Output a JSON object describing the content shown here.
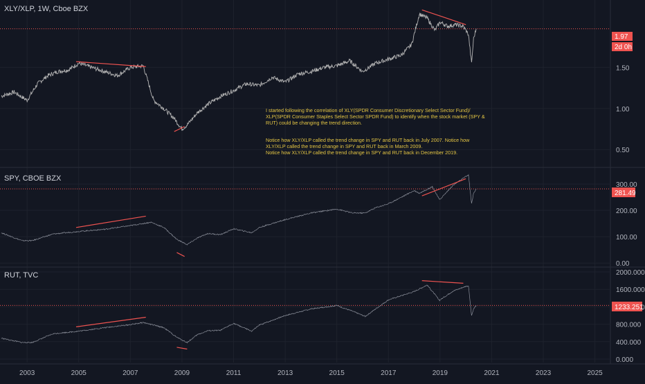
{
  "panes": [
    {
      "id": "xly_xlp",
      "title": "XLY/XLP, 1W, Cboe BZX",
      "yticks": [
        "1.50",
        "1.00",
        "0.50"
      ],
      "tick_values": [
        1.5,
        1.0,
        0.5
      ],
      "ylim": [
        0.3,
        2.32
      ],
      "last_value_label": "1.97",
      "last_value": 1.97,
      "countdown_label": "2d 0h",
      "accent": "#ef5350"
    },
    {
      "id": "spy",
      "title": "SPY, CBOE BZX",
      "yticks": [
        "300.00",
        "200.00",
        "100.00",
        "0.00"
      ],
      "tick_values": [
        300,
        200,
        100,
        0
      ],
      "ylim": [
        -10,
        355
      ],
      "last_value_label": "281.49",
      "last_value": 281.49,
      "accent": "#ef5350"
    },
    {
      "id": "rut",
      "title": "RUT, TVC",
      "yticks": [
        "2000.000",
        "1600.000",
        "1200.000",
        "800.000",
        "400.000",
        "0.000"
      ],
      "tick_values": [
        2000,
        1600,
        1200,
        800,
        400,
        0
      ],
      "ylim": [
        -80,
        2080
      ],
      "last_value_label": "1233.251",
      "last_value": 1233.251,
      "accent": "#ef5350"
    }
  ],
  "xaxis": {
    "ticks": [
      "2003",
      "2005",
      "2007",
      "2009",
      "2011",
      "2013",
      "2015",
      "2017",
      "2019",
      "2021",
      "2023",
      "2025"
    ],
    "tick_years": [
      2003,
      2005,
      2007,
      2009,
      2011,
      2013,
      2015,
      2017,
      2019,
      2021,
      2023,
      2025
    ],
    "range": [
      2001.95,
      2025.6
    ]
  },
  "annotation": {
    "p1": "I started following the correlation of XLY(SPDR Consumer Discretionary Select Sector Fund)/",
    "p2": "XLP(SPDR Consumer Staples Select Sector SPDR Fund) to identify when the stock market (SPY &",
    "p3": "RUT) could be changing the trend direction.",
    "p4": "Notice how XLY/XLP called the trend change in SPY and RUT back in July 2007. Notice how",
    "p5": "XLY/XLP called the trend change in SPY and RUT back in March 2009.",
    "p6": "Notice how XLY/XLP called the trend change in SPY and RUT back in December 2019.",
    "color": "#e6c744"
  },
  "chart_data": [
    {
      "type": "line",
      "title": "XLY/XLP, 1W, Cboe BZX",
      "series": [
        {
          "name": "XLY/XLP",
          "x": [
            2002.0,
            2002.5,
            2003.0,
            2003.4,
            2003.8,
            2004.2,
            2004.6,
            2005.0,
            2005.5,
            2006.0,
            2006.5,
            2007.0,
            2007.5,
            2007.9,
            2008.3,
            2008.7,
            2009.0,
            2009.2,
            2009.6,
            2010.0,
            2010.5,
            2011.0,
            2011.5,
            2012.0,
            2012.5,
            2013.0,
            2013.5,
            2014.0,
            2014.5,
            2015.0,
            2015.5,
            2016.0,
            2016.5,
            2017.0,
            2017.5,
            2017.9,
            2018.2,
            2018.5,
            2018.8,
            2019.0,
            2019.3,
            2019.6,
            2019.9,
            2020.1,
            2020.22,
            2020.3,
            2020.4
          ],
          "values": [
            1.15,
            1.2,
            1.1,
            1.3,
            1.4,
            1.45,
            1.47,
            1.55,
            1.5,
            1.45,
            1.4,
            1.5,
            1.52,
            1.1,
            1.0,
            0.88,
            0.75,
            0.8,
            0.95,
            1.05,
            1.15,
            1.22,
            1.3,
            1.28,
            1.38,
            1.32,
            1.42,
            1.45,
            1.5,
            1.52,
            1.58,
            1.45,
            1.55,
            1.6,
            1.65,
            1.78,
            2.15,
            2.1,
            1.95,
            2.05,
            2.0,
            2.02,
            2.0,
            1.9,
            1.55,
            1.85,
            1.97
          ]
        }
      ],
      "ylim": [
        0.3,
        2.32
      ]
    },
    {
      "type": "line",
      "title": "SPY, CBOE BZX",
      "series": [
        {
          "name": "SPY",
          "x": [
            2002.0,
            2002.8,
            2003.2,
            2004.0,
            2005.0,
            2006.0,
            2007.0,
            2007.8,
            2008.3,
            2008.8,
            2009.2,
            2009.6,
            2010.0,
            2010.5,
            2011.0,
            2011.7,
            2012.0,
            2013.0,
            2014.0,
            2015.0,
            2015.6,
            2016.1,
            2016.5,
            2017.0,
            2018.0,
            2018.2,
            2018.7,
            2018.98,
            2019.5,
            2020.1,
            2020.22,
            2020.3,
            2020.4
          ],
          "values": [
            115,
            85,
            85,
            110,
            120,
            128,
            142,
            155,
            135,
            90,
            70,
            95,
            112,
            108,
            130,
            115,
            135,
            165,
            190,
            205,
            190,
            190,
            210,
            225,
            275,
            265,
            290,
            240,
            295,
            335,
            225,
            265,
            281.49
          ]
        }
      ],
      "ylim": [
        -10,
        355
      ]
    },
    {
      "type": "line",
      "title": "RUT, TVC",
      "series": [
        {
          "name": "RUT",
          "x": [
            2002.0,
            2002.8,
            2003.2,
            2004.0,
            2005.0,
            2006.0,
            2007.0,
            2007.5,
            2008.3,
            2008.8,
            2009.2,
            2009.6,
            2010.0,
            2010.5,
            2011.0,
            2011.7,
            2012.0,
            2013.0,
            2014.0,
            2015.0,
            2015.6,
            2016.1,
            2016.5,
            2017.0,
            2018.0,
            2018.5,
            2018.98,
            2019.5,
            2020.0,
            2020.1,
            2020.22,
            2020.3,
            2020.4
          ],
          "values": [
            480,
            380,
            380,
            580,
            640,
            720,
            790,
            840,
            720,
            500,
            380,
            560,
            650,
            660,
            820,
            640,
            780,
            1000,
            1150,
            1230,
            1100,
            980,
            1150,
            1360,
            1550,
            1700,
            1350,
            1560,
            1670,
            1680,
            1000,
            1150,
            1233.251
          ]
        }
      ],
      "ylim": [
        -80,
        2080
      ]
    }
  ]
}
